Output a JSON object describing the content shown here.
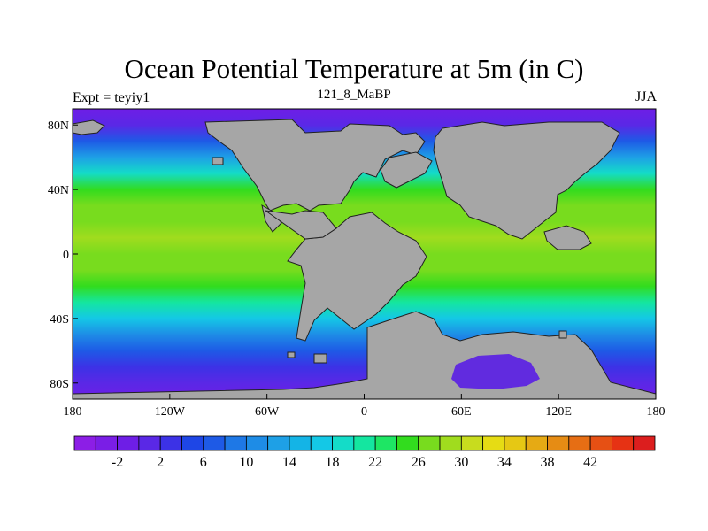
{
  "title": "Ocean Potential Temperature at 5m (in C)",
  "subtitle_left": "Expt = teyiy1",
  "subtitle_center": "121_8_MaBP",
  "subtitle_right": "JJA",
  "map": {
    "variable": "Ocean potential temperature at 5m depth",
    "units": "C",
    "lon_range": [
      -180,
      180
    ],
    "lat_range": [
      -90,
      90
    ],
    "land_color": "#a6a6a6",
    "lon_ticks": [
      {
        "lon": -180,
        "label": "180"
      },
      {
        "lon": -120,
        "label": "120W"
      },
      {
        "lon": -60,
        "label": "60W"
      },
      {
        "lon": 0,
        "label": "0"
      },
      {
        "lon": 60,
        "label": "60E"
      },
      {
        "lon": 120,
        "label": "120E"
      },
      {
        "lon": 180,
        "label": "180"
      }
    ],
    "lat_ticks": [
      {
        "lat": 80,
        "label": "80N"
      },
      {
        "lat": 40,
        "label": "40N"
      },
      {
        "lat": 0,
        "label": "0"
      },
      {
        "lat": -40,
        "label": "40S"
      },
      {
        "lat": -80,
        "label": "80S"
      }
    ],
    "temperature_by_lat": [
      {
        "lat": 90,
        "t": 0
      },
      {
        "lat": 80,
        "t": 3
      },
      {
        "lat": 70,
        "t": 8
      },
      {
        "lat": 60,
        "t": 14
      },
      {
        "lat": 50,
        "t": 21
      },
      {
        "lat": 40,
        "t": 26
      },
      {
        "lat": 30,
        "t": 28
      },
      {
        "lat": 20,
        "t": 29
      },
      {
        "lat": 10,
        "t": 30
      },
      {
        "lat": 0,
        "t": 29
      },
      {
        "lat": -10,
        "t": 29
      },
      {
        "lat": -20,
        "t": 27
      },
      {
        "lat": -30,
        "t": 22
      },
      {
        "lat": -40,
        "t": 18
      },
      {
        "lat": -50,
        "t": 13
      },
      {
        "lat": -60,
        "t": 9
      },
      {
        "lat": -70,
        "t": 5
      },
      {
        "lat": -80,
        "t": 2
      },
      {
        "lat": -90,
        "t": 0
      }
    ]
  },
  "colorbar": {
    "colors": [
      "#8c1ee6",
      "#7a1ee6",
      "#6e1ee6",
      "#5a28e6",
      "#3c32e6",
      "#1e46e6",
      "#1e5ae6",
      "#1e78e6",
      "#1e8ce6",
      "#1ea0e6",
      "#14b4e6",
      "#14c8e6",
      "#14dcc8",
      "#14e6a0",
      "#1ee664",
      "#32dc1e",
      "#78dc1e",
      "#a0dc1e",
      "#c8dc1e",
      "#e6dc14",
      "#e6c814",
      "#e6aa14",
      "#e68c14",
      "#e66e14",
      "#e65014",
      "#e63214",
      "#dc1e1e"
    ],
    "labels": [
      "-2",
      "2",
      "6",
      "10",
      "14",
      "18",
      "22",
      "26",
      "30",
      "34",
      "38",
      "42"
    ],
    "label_every": 2,
    "label_start_index": 1
  }
}
